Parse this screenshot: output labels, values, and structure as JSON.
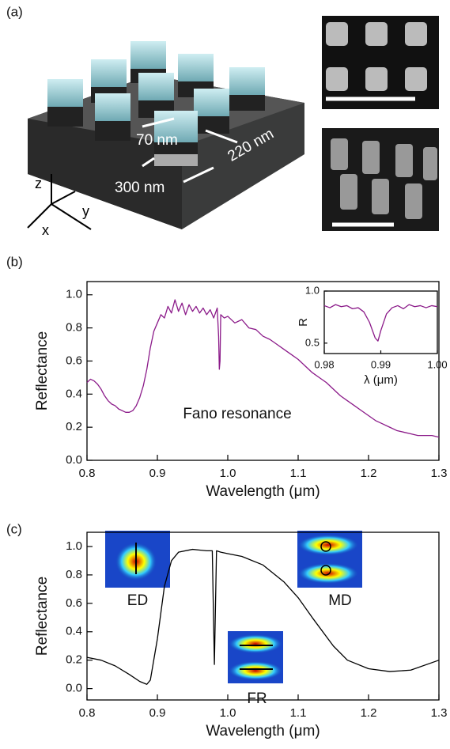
{
  "panel_a": {
    "label": "(a)",
    "dimensions": [
      "70 nm",
      "220 nm",
      "300 nm"
    ],
    "axes": [
      "z",
      "y",
      "x"
    ]
  },
  "chart_data": [
    {
      "type": "line",
      "label": "(b)",
      "x_label": "Wavelength (μm)",
      "y_label": "Reflectance",
      "annotation": "Fano resonance",
      "color": "#8b1a89",
      "x": [
        0.8,
        0.805,
        0.81,
        0.815,
        0.82,
        0.825,
        0.83,
        0.835,
        0.84,
        0.845,
        0.85,
        0.855,
        0.86,
        0.865,
        0.87,
        0.875,
        0.88,
        0.885,
        0.89,
        0.895,
        0.9,
        0.905,
        0.91,
        0.915,
        0.92,
        0.925,
        0.93,
        0.935,
        0.94,
        0.945,
        0.95,
        0.955,
        0.96,
        0.965,
        0.97,
        0.975,
        0.98,
        0.985,
        0.987,
        0.988,
        0.989,
        0.99,
        0.995,
        1.0,
        1.01,
        1.02,
        1.03,
        1.04,
        1.05,
        1.06,
        1.07,
        1.08,
        1.09,
        1.1,
        1.11,
        1.12,
        1.13,
        1.14,
        1.15,
        1.16,
        1.17,
        1.18,
        1.19,
        1.2,
        1.21,
        1.22,
        1.23,
        1.24,
        1.25,
        1.26,
        1.27,
        1.28,
        1.29,
        1.3
      ],
      "values": [
        0.47,
        0.49,
        0.48,
        0.46,
        0.43,
        0.39,
        0.36,
        0.34,
        0.33,
        0.31,
        0.3,
        0.29,
        0.29,
        0.3,
        0.33,
        0.38,
        0.45,
        0.55,
        0.68,
        0.78,
        0.83,
        0.88,
        0.86,
        0.93,
        0.89,
        0.97,
        0.9,
        0.95,
        0.88,
        0.94,
        0.9,
        0.93,
        0.89,
        0.92,
        0.88,
        0.91,
        0.86,
        0.92,
        0.75,
        0.55,
        0.6,
        0.88,
        0.86,
        0.87,
        0.83,
        0.85,
        0.8,
        0.79,
        0.75,
        0.73,
        0.7,
        0.67,
        0.64,
        0.61,
        0.57,
        0.53,
        0.5,
        0.47,
        0.43,
        0.39,
        0.36,
        0.33,
        0.3,
        0.27,
        0.24,
        0.22,
        0.2,
        0.18,
        0.17,
        0.16,
        0.15,
        0.15,
        0.15,
        0.14
      ],
      "xlim": [
        0.8,
        1.3
      ],
      "ylim": [
        0,
        1.08
      ],
      "xticks": [
        0.8,
        0.9,
        {
          "value": 1,
          "label": "1.0"
        },
        1.1,
        1.2,
        1.3
      ],
      "yticks": [
        {
          "value": 0,
          "label": "0.0"
        },
        0.2,
        0.4,
        0.6,
        0.8,
        {
          "value": 1,
          "label": "1.0"
        }
      ]
    },
    {
      "type": "line",
      "x_label": "λ (μm)",
      "y_label": "R",
      "color": "#8b1a89",
      "x": [
        0.98,
        0.981,
        0.982,
        0.983,
        0.984,
        0.985,
        0.986,
        0.987,
        0.988,
        0.989,
        0.9895,
        0.99,
        0.991,
        0.992,
        0.993,
        0.994,
        0.995,
        0.996,
        0.997,
        0.998,
        0.999,
        1.0
      ],
      "values": [
        0.86,
        0.84,
        0.87,
        0.85,
        0.86,
        0.83,
        0.84,
        0.8,
        0.7,
        0.55,
        0.52,
        0.62,
        0.78,
        0.84,
        0.86,
        0.83,
        0.87,
        0.85,
        0.86,
        0.84,
        0.86,
        0.85
      ],
      "xlim": [
        0.98,
        1.0
      ],
      "ylim": [
        0.4,
        1.0
      ],
      "xticks": [
        0.98,
        0.99,
        {
          "value": 1,
          "label": "1.00"
        }
      ],
      "yticks": [
        0.5,
        {
          "value": 1,
          "label": "1.0"
        }
      ]
    },
    {
      "type": "line",
      "label": "(c)",
      "x_label": "Wavelength (μm)",
      "y_label": "Reflectance",
      "annotations": [
        "ED",
        "MD",
        "FR"
      ],
      "color": "#000000",
      "x": [
        0.8,
        0.82,
        0.84,
        0.86,
        0.875,
        0.885,
        0.89,
        0.9,
        0.91,
        0.92,
        0.93,
        0.95,
        0.97,
        0.978,
        0.981,
        0.984,
        0.99,
        1.0,
        1.02,
        1.05,
        1.08,
        1.1,
        1.12,
        1.15,
        1.17,
        1.2,
        1.23,
        1.26,
        1.3
      ],
      "values": [
        0.22,
        0.2,
        0.16,
        0.1,
        0.05,
        0.03,
        0.06,
        0.35,
        0.72,
        0.9,
        0.96,
        0.98,
        0.97,
        0.97,
        0.17,
        0.97,
        0.96,
        0.95,
        0.93,
        0.87,
        0.75,
        0.64,
        0.5,
        0.3,
        0.2,
        0.14,
        0.12,
        0.13,
        0.2
      ],
      "xlim": [
        0.8,
        1.3
      ],
      "ylim": [
        -0.08,
        1.1
      ],
      "xticks": [
        0.8,
        0.9,
        {
          "value": 1,
          "label": "1.0"
        },
        1.1,
        1.2,
        1.3
      ],
      "yticks": [
        {
          "value": 0,
          "label": "0.0"
        },
        0.2,
        0.4,
        0.6,
        0.8,
        {
          "value": 1,
          "label": "1.0"
        }
      ]
    }
  ]
}
